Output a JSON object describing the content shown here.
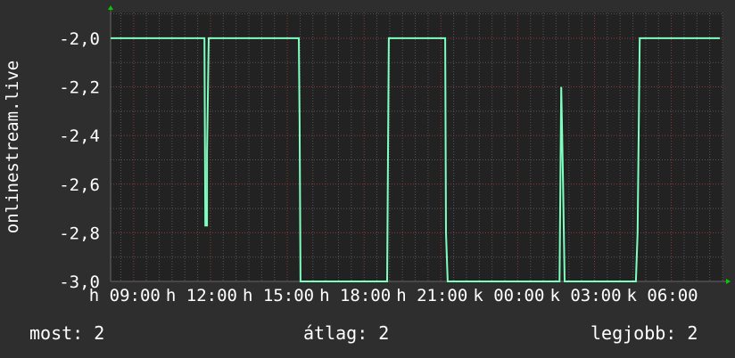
{
  "chart_data": {
    "type": "line",
    "ylabel": "onlinestream.live",
    "ylim": [
      -3.0,
      -1.894
    ],
    "yticks": [
      "-2,0",
      "-2,2",
      "-2,4",
      "-2,6",
      "-2,8",
      "-3,0"
    ],
    "ytick_values": [
      -2.0,
      -2.2,
      -2.4,
      -2.6,
      -2.8,
      -3.0
    ],
    "xlim": [
      "08:06",
      "08:00"
    ],
    "xticks": [
      "h 09:00",
      "h 12:00",
      "h 15:00",
      "h 18:00",
      "h 21:00",
      "k 00:00",
      "k 03:00",
      "k 06:00"
    ],
    "xtick_times": [
      "09:00",
      "12:00",
      "15:00",
      "18:00",
      "21:00",
      "00:00",
      "03:00",
      "06:00"
    ],
    "grid": true,
    "series": [
      {
        "color": "#7effc0",
        "points": [
          [
            "08:06",
            -2.0
          ],
          [
            "11:46",
            -2.0
          ],
          [
            "11:48",
            -2.77
          ],
          [
            "11:52",
            -2.77
          ],
          [
            "11:52",
            -2.47
          ],
          [
            "11:56",
            -2.0
          ],
          [
            "15:27",
            -2.0
          ],
          [
            "15:29",
            -2.35
          ],
          [
            "15:31",
            -3.0
          ],
          [
            "18:54",
            -3.0
          ],
          [
            "18:58",
            -2.0
          ],
          [
            "21:10",
            -2.0
          ],
          [
            "21:12",
            -2.8
          ],
          [
            "21:16",
            -3.0
          ],
          [
            "01:38",
            -3.0
          ],
          [
            "01:42",
            -2.2
          ],
          [
            "01:46",
            -2.57
          ],
          [
            "01:50",
            -3.0
          ],
          [
            "04:37",
            -3.0
          ],
          [
            "04:41",
            -2.8
          ],
          [
            "04:46",
            -2.0
          ],
          [
            "07:54",
            -2.0
          ]
        ]
      }
    ]
  },
  "colors": {
    "background": "#2e2e2e",
    "plot_background": "#222222",
    "line": "#7effc0",
    "major_grid": "#8a3a3a",
    "minor_grid": "#555555",
    "arrow": "#00cc00"
  },
  "stats": {
    "current": "most: 2",
    "average": "átlag: 2",
    "max": "legjobb: 2"
  }
}
